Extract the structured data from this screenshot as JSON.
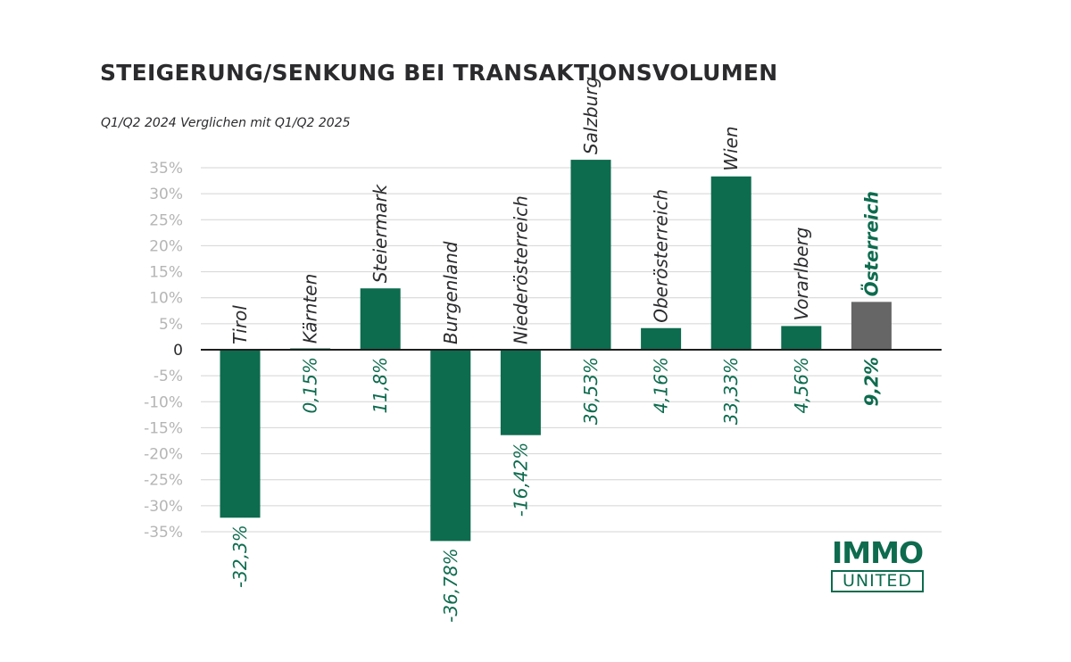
{
  "chart_data": {
    "type": "bar",
    "title": "STEIGERUNG/SENKUNG BEI TRANSAKTIONSVOLUMEN",
    "subtitle": "Q1/Q2 2024 Verglichen mit Q1/Q2 2025",
    "categories": [
      "Tirol",
      "Kärnten",
      "Steiermark",
      "Burgenland",
      "Niederösterreich",
      "Salzburg",
      "Oberösterreich",
      "Wien",
      "Vorarlberg",
      "Österreich"
    ],
    "values": [
      -32.3,
      0.15,
      11.8,
      -36.78,
      -16.42,
      36.53,
      4.16,
      33.33,
      4.56,
      9.2
    ],
    "value_labels": [
      "-32,3%",
      "0,15%",
      "11,8%",
      "-36,78%",
      "-16,42%",
      "36,53%",
      "4,16%",
      "33,33%",
      "4,56%",
      "9,2%"
    ],
    "highlight_category": "Österreich",
    "yticks": [
      "35%",
      "30%",
      "25%",
      "20%",
      "15%",
      "10%",
      "5%",
      "0",
      "-5%",
      "-10%",
      "-15%",
      "-20%",
      "-25%",
      "-30%",
      "-35%"
    ],
    "ytick_values": [
      35,
      30,
      25,
      20,
      15,
      10,
      5,
      0,
      -5,
      -10,
      -15,
      -20,
      -25,
      -30,
      -35
    ],
    "ylim": [
      -35,
      35
    ],
    "grid": true,
    "colors": {
      "bar": "#0d6b4e",
      "highlight_bar": "#666666",
      "label": "#0d6b4e",
      "category_label": "#2b2b2e"
    }
  },
  "logo": {
    "top": "IMMO",
    "bottom": "UNITED"
  }
}
